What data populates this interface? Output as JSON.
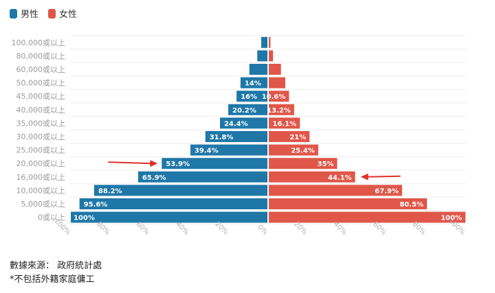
{
  "legend": [
    {
      "name": "男性",
      "color": "#1f77a8"
    },
    {
      "name": "女性",
      "color": "#e0574a"
    }
  ],
  "chart_data": {
    "type": "bar",
    "orientation": "horizontal",
    "categories": [
      "100,000或以上",
      "80,000或以上",
      "60,000或以上",
      "50,000或以上",
      "45,000或以上",
      "40,000或以上",
      "35,000或以上",
      "30,000或以上",
      "25,000或以上",
      "20,000或以上",
      "16,000或以上",
      "10,000或以上",
      "5,000或以上",
      "0或以上"
    ],
    "series": [
      {
        "name": "男性",
        "color": "#1f77a8",
        "values": [
          3.5,
          5.5,
          9.5,
          14,
          16,
          20.2,
          24.4,
          31.8,
          39.4,
          53.9,
          65.9,
          88.2,
          95.6,
          100
        ],
        "labels": [
          "",
          "",
          "",
          "14%",
          "16%",
          "20.2%",
          "24.4%",
          "31.8%",
          "39.4%",
          "53.9%",
          "65.9%",
          "88.2%",
          "95.6%",
          "100%"
        ]
      },
      {
        "name": "女性",
        "color": "#e0574a",
        "values": [
          1.2,
          2.5,
          6.5,
          8.7,
          10.6,
          13.2,
          16.1,
          21,
          25.4,
          35,
          44.1,
          67.9,
          80.5,
          100
        ],
        "labels": [
          "",
          "",
          "",
          "",
          "10.6%",
          "13.2%",
          "16.1%",
          "21%",
          "25.4%",
          "35%",
          "44.1%",
          "67.9%",
          "80.5%",
          "100%"
        ]
      }
    ],
    "xticks": [
      "100%",
      "80%",
      "60%",
      "40%",
      "20%",
      "0%",
      "20%",
      "40%",
      "60%",
      "80%",
      "100%"
    ],
    "xlim": [
      -100,
      100
    ],
    "annotations": [
      {
        "type": "arrow",
        "series": "男性",
        "category": "20,000或以上"
      },
      {
        "type": "arrow",
        "series": "女性",
        "category": "16,000或以上"
      }
    ]
  },
  "footnotes": {
    "source": "數據來源： 政府統計處",
    "note": "*不包括外籍家庭傭工"
  }
}
